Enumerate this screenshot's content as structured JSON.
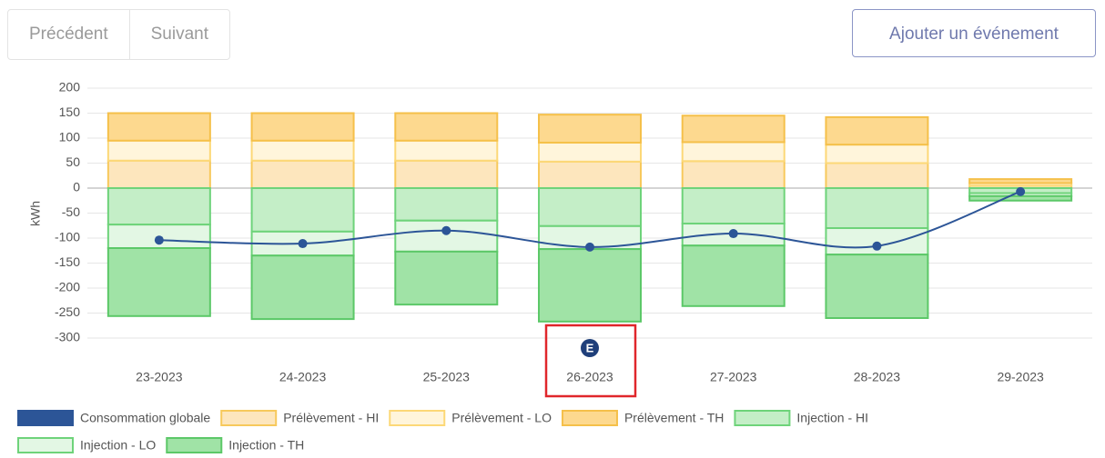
{
  "toolbar": {
    "previous": "Précédent",
    "next": "Suivant",
    "add_event": "Ajouter un événement"
  },
  "chart_data": {
    "type": "bar",
    "stacked": true,
    "ylabel": "kWh",
    "categories": [
      "23-2023",
      "24-2023",
      "25-2023",
      "26-2023",
      "27-2023",
      "28-2023",
      "29-2023"
    ],
    "ylim": [
      -300,
      200
    ],
    "yticks": [
      200,
      150,
      100,
      50,
      0,
      -50,
      -100,
      -150,
      -200,
      -250,
      -300
    ],
    "grid": true,
    "annotation": {
      "category": 3,
      "text": "E"
    },
    "series": [
      {
        "name": "Consommation globale",
        "type": "line",
        "color": "#2c5597",
        "values": [
          -104,
          -111,
          -85,
          -118,
          -91,
          -116,
          -7
        ]
      },
      {
        "name": "Prélèvement - HI",
        "color": "#fde6bd",
        "border": "#f7c95c",
        "values": [
          55,
          55,
          55,
          53,
          54,
          50,
          5
        ]
      },
      {
        "name": "Prélèvement - LO",
        "color": "#fff5db",
        "border": "#fcd877",
        "values": [
          40,
          40,
          40,
          38,
          38,
          37,
          5
        ]
      },
      {
        "name": "Prélèvement - TH",
        "color": "#fdd98f",
        "border": "#f5c04a",
        "values": [
          55,
          55,
          55,
          56,
          53,
          55,
          8
        ]
      },
      {
        "name": "Injection - HI",
        "color": "#c4eec7",
        "border": "#6ed37a",
        "values": [
          -73,
          -87,
          -65,
          -76,
          -71,
          -80,
          -10
        ]
      },
      {
        "name": "Injection - LO",
        "color": "#e3f7e4",
        "border": "#6ed37a",
        "values": [
          -47,
          -48,
          -62,
          -46,
          -44,
          -53,
          -6
        ]
      },
      {
        "name": "Injection - TH",
        "color": "#a0e3a6",
        "border": "#5cc868",
        "values": [
          -136,
          -127,
          -106,
          -145,
          -121,
          -127,
          -9
        ]
      }
    ]
  }
}
